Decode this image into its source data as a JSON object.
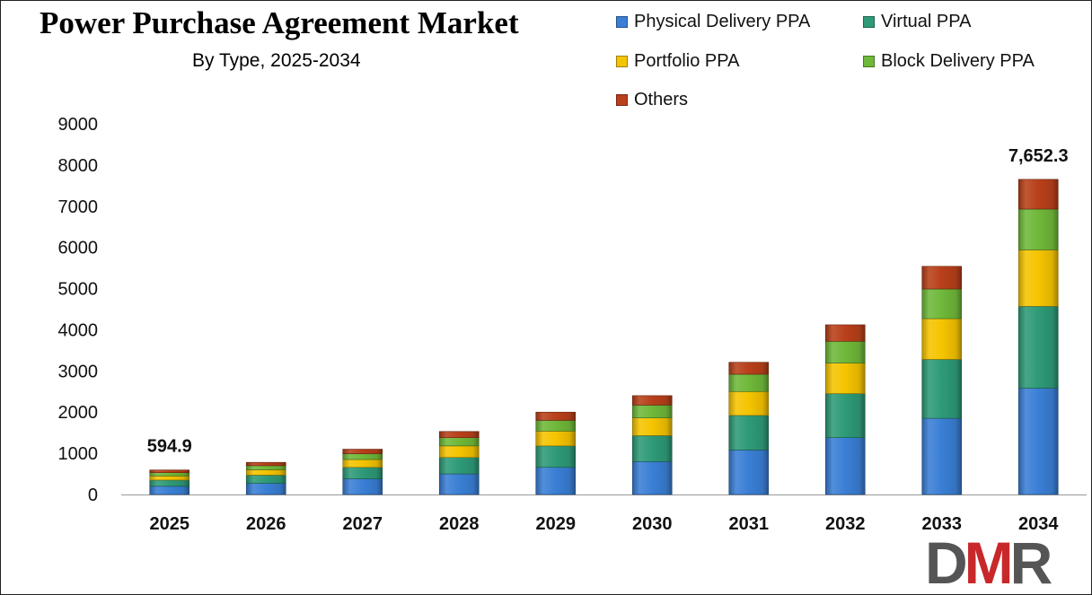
{
  "title": "Power Purchase Agreement Market",
  "subtitle": "By Type, 2025-2034",
  "legend": [
    {
      "name": "Physical Delivery PPA",
      "color": "#3a7fd5"
    },
    {
      "name": "Virtual PPA",
      "color": "#2e9a78"
    },
    {
      "name": "Portfolio PPA",
      "color": "#f5c400"
    },
    {
      "name": "Block Delivery PPA",
      "color": "#6fb83a"
    },
    {
      "name": "Others",
      "color": "#b8401a"
    }
  ],
  "logo": {
    "text": "DMR",
    "colors": [
      "#555555",
      "#c8282a"
    ]
  },
  "chart_data": {
    "type": "bar",
    "stacked": true,
    "categories": [
      "2025",
      "2026",
      "2027",
      "2028",
      "2029",
      "2030",
      "2031",
      "2032",
      "2033",
      "2034"
    ],
    "series": [
      {
        "name": "Physical Delivery PPA",
        "color": "#3a7fd5",
        "values": [
          200,
          270,
          380,
          500,
          660,
          800,
          1080,
          1380,
          1850,
          2580
        ]
      },
      {
        "name": "Virtual PPA",
        "color": "#2e9a78",
        "values": [
          150,
          200,
          280,
          400,
          520,
          630,
          840,
          1070,
          1430,
          1990
        ]
      },
      {
        "name": "Portfolio PPA",
        "color": "#f5c400",
        "values": [
          100,
          130,
          190,
          280,
          360,
          430,
          580,
          740,
          990,
          1370
        ]
      },
      {
        "name": "Block Delivery PPA",
        "color": "#6fb83a",
        "values": [
          80,
          100,
          140,
          200,
          260,
          310,
          420,
          530,
          720,
          990
        ]
      },
      {
        "name": "Others",
        "color": "#b8401a",
        "values": [
          64.9,
          80,
          110,
          150,
          200,
          230,
          290,
          400,
          550,
          722.3
        ]
      }
    ],
    "data_labels": [
      {
        "category": "2025",
        "text": "594.9"
      },
      {
        "category": "2034",
        "text": "7,652.3"
      }
    ],
    "ylim": [
      0,
      9000
    ],
    "yticks": [
      "0",
      "1000",
      "2000",
      "3000",
      "4000",
      "5000",
      "6000",
      "7000",
      "8000",
      "9000"
    ],
    "grid": false,
    "legend_position": "top-right"
  }
}
